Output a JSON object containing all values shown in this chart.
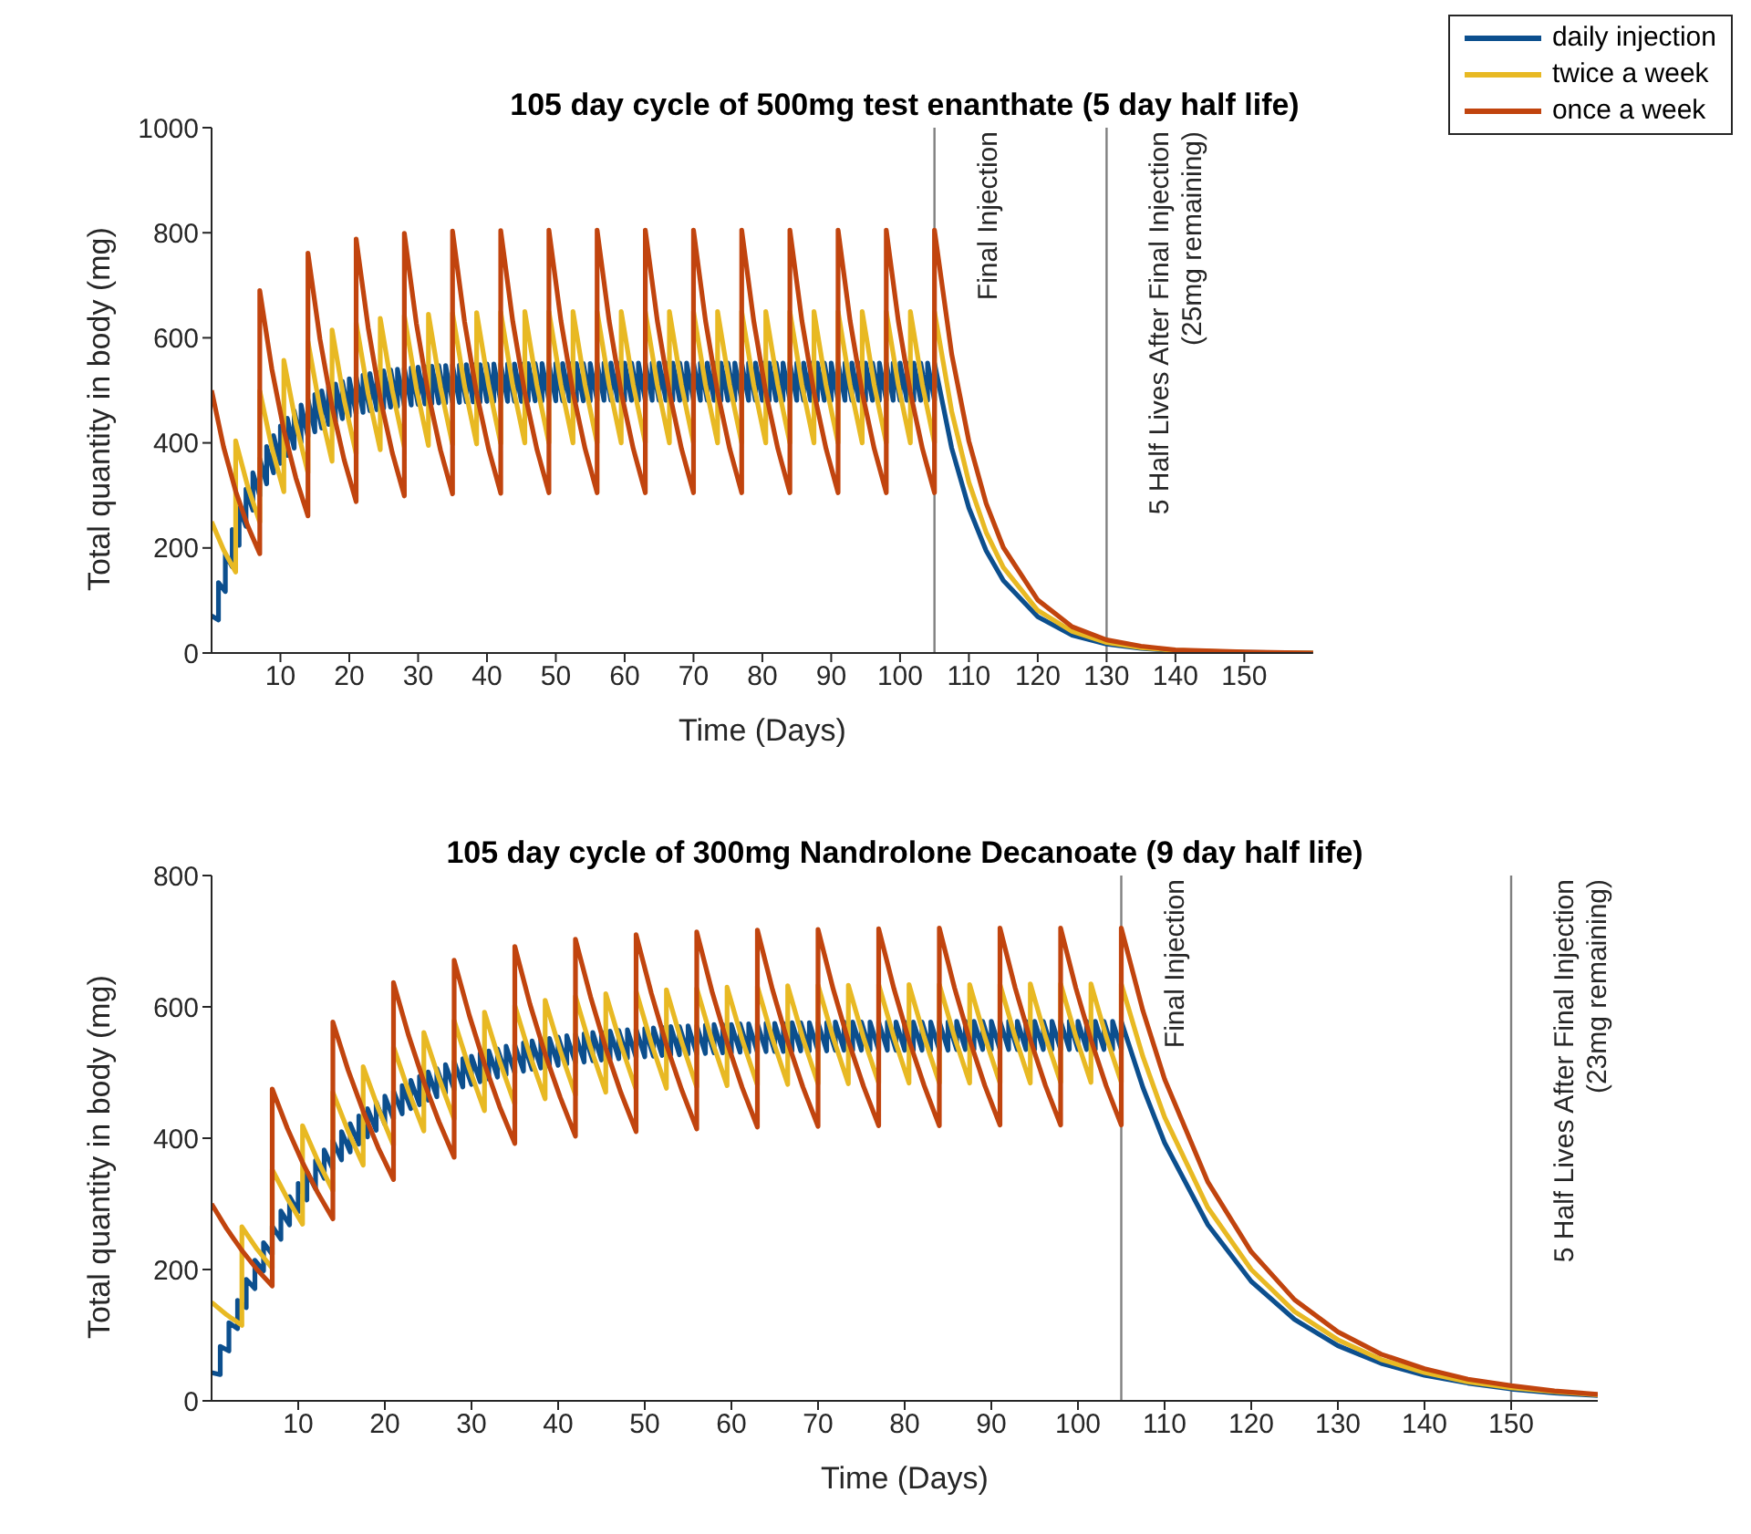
{
  "chart_data": [
    {
      "type": "line",
      "title": "105 day cycle of 500mg test enanthate (5 day half life)",
      "xlabel": "Time (Days)",
      "ylabel": "Total quantity in body (mg)",
      "xlim": [
        0,
        160
      ],
      "xticks": [
        10,
        20,
        30,
        40,
        50,
        60,
        70,
        80,
        90,
        100,
        110,
        120,
        130,
        140,
        150
      ],
      "ylim": [
        0,
        1000
      ],
      "yticks": [
        0,
        200,
        400,
        600,
        800,
        1000
      ],
      "legend": "top right",
      "line_style": "solid",
      "marker": "none",
      "ref_lines": [
        {
          "axis": "x",
          "value": 105,
          "label": "Final Injection",
          "color": "#808080"
        },
        {
          "axis": "x",
          "value": 130,
          "label": "5 Half Lives After Final Injection\n(25mg remaining)",
          "color": "#808080"
        }
      ],
      "series": [
        {
          "name": "daily injection",
          "color": "#0c4f8e",
          "x": [
            0,
            1,
            1,
            2,
            2,
            3,
            3,
            4,
            4,
            5,
            5,
            6,
            6,
            7,
            7,
            8,
            8,
            9,
            9,
            10,
            10,
            11,
            11,
            12,
            12,
            13,
            13,
            14,
            14,
            15,
            15,
            16,
            16,
            17,
            17,
            18,
            18,
            19,
            19,
            20,
            20,
            21,
            21,
            22,
            22,
            23,
            23,
            24,
            24,
            25,
            25,
            26,
            26,
            27,
            27,
            28,
            28,
            29,
            29,
            30,
            30,
            31,
            31,
            32,
            32,
            33,
            33,
            34,
            34,
            35,
            35,
            36,
            36,
            37,
            37,
            38,
            38,
            39,
            39,
            40,
            40,
            41,
            41,
            42,
            42,
            43,
            43,
            44,
            44,
            45,
            45,
            46,
            46,
            47,
            47,
            48,
            48,
            49,
            49,
            50,
            50,
            51,
            51,
            52,
            52,
            53,
            53,
            54,
            54,
            55,
            55,
            56,
            56,
            57,
            57,
            58,
            58,
            59,
            59,
            60,
            60,
            61,
            61,
            62,
            62,
            63,
            63,
            64,
            64,
            65,
            65,
            66,
            66,
            67,
            67,
            68,
            68,
            69,
            69,
            70,
            70,
            71,
            71,
            72,
            72,
            73,
            73,
            74,
            74,
            75,
            75,
            76,
            76,
            77,
            77,
            78,
            78,
            79,
            79,
            80,
            80,
            81,
            81,
            82,
            82,
            83,
            83,
            84,
            84,
            85,
            85,
            86,
            86,
            87,
            87,
            88,
            88,
            89,
            89,
            90,
            90,
            91,
            91,
            92,
            92,
            93,
            93,
            94,
            94,
            95,
            95,
            96,
            96,
            97,
            97,
            98,
            98,
            99,
            99,
            100,
            100,
            101,
            101,
            102,
            102,
            103,
            103,
            104,
            104,
            105,
            105,
            107.5,
            110,
            112.5,
            115,
            120,
            125,
            130,
            135,
            140,
            150,
            160
          ],
          "values": [
            71,
            63,
            134,
            117,
            188,
            164,
            235,
            205,
            276,
            241,
            312,
            272,
            343,
            299,
            370,
            322,
            393,
            343,
            414,
            361,
            432,
            376,
            447,
            390,
            461,
            401,
            472,
            412,
            483,
            421,
            492,
            428,
            499,
            435,
            506,
            441,
            512,
            446,
            517,
            451,
            522,
            455,
            526,
            458,
            529,
            461,
            532,
            463,
            534,
            466,
            537,
            468,
            539,
            469,
            540,
            471,
            542,
            472,
            543,
            473,
            544,
            474,
            545,
            475,
            546,
            476,
            547,
            476,
            547,
            477,
            548,
            477,
            548,
            478,
            549,
            478,
            549,
            478,
            549,
            479,
            550,
            479,
            550,
            479,
            550,
            479,
            550,
            479,
            550,
            479,
            550,
            480,
            551,
            480,
            551,
            480,
            551,
            480,
            551,
            480,
            551,
            480,
            551,
            480,
            551,
            480,
            551,
            480,
            551,
            480,
            551,
            481,
            552,
            481,
            552,
            481,
            552,
            481,
            552,
            481,
            552,
            481,
            552,
            481,
            552,
            481,
            552,
            481,
            552,
            481,
            552,
            481,
            552,
            481,
            552,
            481,
            552,
            481,
            552,
            481,
            552,
            481,
            552,
            481,
            552,
            481,
            552,
            481,
            552,
            481,
            552,
            481,
            552,
            481,
            552,
            481,
            552,
            481,
            552,
            481,
            552,
            481,
            552,
            481,
            552,
            481,
            552,
            481,
            552,
            481,
            552,
            481,
            552,
            481,
            552,
            481,
            552,
            481,
            552,
            481,
            552,
            481,
            552,
            481,
            552,
            481,
            552,
            481,
            552,
            481,
            552,
            481,
            552,
            481,
            552,
            481,
            552,
            481,
            552,
            481,
            552,
            481,
            552,
            481,
            552,
            481,
            552,
            481,
            552,
            481,
            552,
            390,
            276,
            195,
            138,
            69,
            34,
            17,
            9,
            4,
            1,
            0
          ]
        },
        {
          "name": "twice a week",
          "color": "#e8b923",
          "x": [
            0,
            1.75,
            3.5,
            3.5,
            5.25,
            7,
            7,
            8.75,
            10.5,
            10.5,
            12.25,
            14,
            14,
            15.75,
            17.5,
            17.5,
            19.25,
            21,
            21,
            22.75,
            24.5,
            24.5,
            26.25,
            28,
            28,
            29.75,
            31.5,
            31.5,
            33.25,
            35,
            35,
            36.75,
            38.5,
            38.5,
            40.25,
            42,
            42,
            43.75,
            45.5,
            45.5,
            47.25,
            49,
            49,
            50.75,
            52.5,
            52.5,
            54.25,
            56,
            56,
            57.75,
            59.5,
            59.5,
            61.25,
            63,
            63,
            64.75,
            66.5,
            66.5,
            68.25,
            70,
            70,
            71.75,
            73.5,
            73.5,
            75.25,
            77,
            77,
            78.75,
            80.5,
            80.5,
            82.25,
            84,
            84,
            85.75,
            87.5,
            87.5,
            89.25,
            91,
            91,
            92.75,
            94.5,
            94.5,
            96.25,
            98,
            98,
            99.75,
            101.5,
            101.5,
            103.25,
            105,
            105,
            107.5,
            110,
            112.5,
            115,
            120,
            125,
            130,
            135,
            140,
            150,
            160
          ],
          "values": [
            250,
            196,
            154,
            404,
            317,
            249,
            499,
            391,
            307,
            557,
            437,
            343,
            593,
            465,
            365,
            615,
            482,
            379,
            629,
            493,
            387,
            637,
            500,
            392,
            642,
            504,
            395,
            645,
            506,
            397,
            647,
            508,
            398,
            648,
            509,
            399,
            649,
            509,
            400,
            650,
            510,
            400,
            650,
            510,
            400,
            650,
            510,
            400,
            650,
            510,
            400,
            650,
            510,
            400,
            650,
            510,
            400,
            650,
            510,
            400,
            650,
            510,
            400,
            650,
            510,
            400,
            650,
            510,
            400,
            650,
            510,
            400,
            650,
            510,
            400,
            650,
            510,
            400,
            650,
            510,
            400,
            650,
            510,
            400,
            650,
            510,
            400,
            650,
            510,
            400,
            650,
            460,
            325,
            230,
            163,
            81,
            41,
            20,
            10,
            5,
            1,
            0
          ]
        },
        {
          "name": "once a week",
          "color": "#c1440e",
          "x": [
            0,
            1.75,
            3.5,
            5.25,
            7,
            7,
            8.75,
            10.5,
            12.25,
            14,
            14,
            15.75,
            17.5,
            19.25,
            21,
            21,
            22.75,
            24.5,
            26.25,
            28,
            28,
            29.75,
            31.5,
            33.25,
            35,
            35,
            36.75,
            38.5,
            40.25,
            42,
            42,
            43.75,
            45.5,
            47.25,
            49,
            49,
            50.75,
            52.5,
            54.25,
            56,
            56,
            57.75,
            59.5,
            61.25,
            63,
            63,
            64.75,
            66.5,
            68.25,
            70,
            70,
            71.75,
            73.5,
            75.25,
            77,
            77,
            78.75,
            80.5,
            82.25,
            84,
            84,
            85.75,
            87.5,
            89.25,
            91,
            91,
            92.75,
            94.5,
            96.25,
            98,
            98,
            99.75,
            101.5,
            103.25,
            105,
            105,
            107.5,
            110,
            112.5,
            115,
            120,
            125,
            130,
            135,
            140,
            150,
            160
          ],
          "values": [
            500,
            392,
            308,
            242,
            189,
            690,
            541,
            424,
            333,
            261,
            761,
            597,
            469,
            368,
            288,
            788,
            619,
            485,
            381,
            299,
            799,
            627,
            492,
            386,
            303,
            803,
            630,
            494,
            388,
            304,
            804,
            631,
            495,
            388,
            305,
            805,
            632,
            496,
            389,
            305,
            805,
            632,
            496,
            389,
            305,
            805,
            632,
            496,
            389,
            305,
            805,
            632,
            496,
            389,
            305,
            805,
            632,
            496,
            389,
            305,
            805,
            632,
            496,
            389,
            305,
            805,
            632,
            496,
            389,
            305,
            805,
            632,
            496,
            389,
            305,
            805,
            569,
            403,
            285,
            201,
            101,
            50,
            25,
            13,
            6,
            2,
            0
          ]
        }
      ]
    },
    {
      "type": "line",
      "title": "105 day cycle of 300mg Nandrolone Decanoate (9 day half life)",
      "xlabel": "Time (Days)",
      "ylabel": "Total quantity in body (mg)",
      "xlim": [
        0,
        160
      ],
      "xticks": [
        10,
        20,
        30,
        40,
        50,
        60,
        70,
        80,
        90,
        100,
        110,
        120,
        130,
        140,
        150
      ],
      "ylim": [
        0,
        800
      ],
      "yticks": [
        0,
        200,
        400,
        600,
        800
      ],
      "line_style": "solid",
      "marker": "none",
      "ref_lines": [
        {
          "axis": "x",
          "value": 105,
          "label": "Final Injection",
          "color": "#808080"
        },
        {
          "axis": "x",
          "value": 150,
          "label": "5 Half Lives After Final Injection\n(23mg remaining)",
          "color": "#808080"
        }
      ],
      "series": [
        {
          "color": "#0c4f8e",
          "x": [
            0,
            1,
            1,
            2,
            2,
            3,
            3,
            4,
            4,
            5,
            5,
            6,
            6,
            7,
            7,
            8,
            8,
            9,
            9,
            10,
            10,
            11,
            11,
            12,
            12,
            13,
            13,
            14,
            14,
            15,
            15,
            16,
            16,
            17,
            17,
            18,
            18,
            19,
            19,
            20,
            20,
            21,
            21,
            22,
            22,
            23,
            23,
            24,
            24,
            25,
            25,
            26,
            26,
            27,
            27,
            28,
            28,
            29,
            29,
            30,
            30,
            31,
            31,
            32,
            32,
            33,
            33,
            34,
            34,
            35,
            35,
            36,
            36,
            37,
            37,
            38,
            38,
            39,
            39,
            40,
            40,
            41,
            41,
            42,
            42,
            43,
            43,
            44,
            44,
            45,
            45,
            46,
            46,
            47,
            47,
            48,
            48,
            49,
            49,
            50,
            50,
            51,
            51,
            52,
            52,
            53,
            53,
            54,
            54,
            55,
            55,
            56,
            56,
            57,
            57,
            58,
            58,
            59,
            59,
            60,
            60,
            61,
            61,
            62,
            62,
            63,
            63,
            64,
            64,
            65,
            65,
            66,
            66,
            67,
            67,
            68,
            68,
            69,
            69,
            70,
            70,
            71,
            71,
            72,
            72,
            73,
            73,
            74,
            74,
            75,
            75,
            76,
            76,
            77,
            77,
            78,
            78,
            79,
            79,
            80,
            80,
            81,
            81,
            82,
            82,
            83,
            83,
            84,
            84,
            85,
            85,
            86,
            86,
            87,
            87,
            88,
            88,
            89,
            89,
            90,
            90,
            91,
            91,
            92,
            92,
            93,
            93,
            94,
            94,
            95,
            95,
            96,
            96,
            97,
            97,
            98,
            98,
            99,
            99,
            100,
            100,
            101,
            101,
            102,
            102,
            103,
            103,
            104,
            104,
            105,
            105,
            107.5,
            110,
            115,
            120,
            125,
            130,
            135,
            140,
            145,
            150,
            155,
            160
          ],
          "values": [
            43,
            40,
            83,
            76,
            119,
            110,
            153,
            142,
            185,
            171,
            214,
            198,
            241,
            223,
            266,
            246,
            289,
            268,
            311,
            288,
            331,
            306,
            349,
            323,
            366,
            339,
            382,
            353,
            396,
            367,
            410,
            379,
            422,
            391,
            434,
            402,
            445,
            412,
            455,
            421,
            464,
            429,
            472,
            437,
            480,
            445,
            488,
            451,
            494,
            458,
            501,
            463,
            506,
            469,
            512,
            474,
            517,
            478,
            521,
            482,
            525,
            486,
            529,
            490,
            533,
            493,
            536,
            497,
            540,
            499,
            542,
            502,
            545,
            505,
            548,
            507,
            550,
            509,
            552,
            511,
            554,
            513,
            556,
            515,
            558,
            516,
            559,
            518,
            561,
            519,
            562,
            520,
            563,
            521,
            564,
            522,
            565,
            523,
            566,
            524,
            567,
            525,
            568,
            526,
            569,
            527,
            570,
            527,
            570,
            528,
            571,
            528,
            571,
            529,
            572,
            530,
            573,
            530,
            573,
            530,
            573,
            531,
            574,
            531,
            574,
            531,
            574,
            532,
            575,
            532,
            575,
            532,
            575,
            533,
            576,
            533,
            576,
            533,
            576,
            533,
            576,
            533,
            576,
            534,
            577,
            534,
            577,
            534,
            577,
            534,
            577,
            534,
            577,
            534,
            577,
            534,
            577,
            534,
            577,
            534,
            577,
            534,
            577,
            534,
            577,
            534,
            577,
            534,
            577,
            534,
            577,
            535,
            578,
            535,
            578,
            535,
            578,
            535,
            578,
            535,
            578,
            535,
            578,
            535,
            578,
            535,
            578,
            535,
            578,
            535,
            578,
            535,
            578,
            535,
            578,
            535,
            578,
            535,
            578,
            535,
            578,
            535,
            578,
            535,
            578,
            535,
            578,
            535,
            578,
            535,
            578,
            477,
            393,
            268,
            182,
            124,
            84,
            57,
            39,
            27,
            18,
            12,
            8
          ]
        },
        {
          "color": "#e8b923",
          "x": [
            0,
            1.75,
            3.5,
            3.5,
            5.25,
            7,
            7,
            8.75,
            10.5,
            10.5,
            12.25,
            14,
            14,
            15.75,
            17.5,
            17.5,
            19.25,
            21,
            21,
            22.75,
            24.5,
            24.5,
            26.25,
            28,
            28,
            29.75,
            31.5,
            31.5,
            33.25,
            35,
            35,
            36.75,
            38.5,
            38.5,
            40.25,
            42,
            42,
            43.75,
            45.5,
            45.5,
            47.25,
            49,
            49,
            50.75,
            52.5,
            52.5,
            54.25,
            56,
            56,
            57.75,
            59.5,
            59.5,
            61.25,
            63,
            63,
            64.75,
            66.5,
            66.5,
            68.25,
            70,
            70,
            71.75,
            73.5,
            73.5,
            75.25,
            77,
            77,
            78.75,
            80.5,
            80.5,
            82.25,
            84,
            84,
            85.75,
            87.5,
            87.5,
            89.25,
            91,
            91,
            92.75,
            94.5,
            94.5,
            96.25,
            98,
            98,
            99.75,
            101.5,
            101.5,
            103.25,
            105,
            105,
            107.5,
            110,
            115,
            120,
            125,
            130,
            135,
            140,
            145,
            150,
            155,
            160
          ],
          "values": [
            150,
            131,
            115,
            265,
            231,
            202,
            352,
            308,
            269,
            419,
            366,
            320,
            470,
            411,
            359,
            509,
            445,
            389,
            539,
            471,
            411,
            561,
            491,
            429,
            579,
            506,
            442,
            592,
            517,
            452,
            602,
            526,
            460,
            610,
            533,
            466,
            616,
            538,
            470,
            620,
            542,
            474,
            624,
            545,
            476,
            626,
            547,
            478,
            628,
            549,
            480,
            630,
            550,
            481,
            631,
            551,
            482,
            632,
            552,
            483,
            633,
            553,
            483,
            633,
            553,
            484,
            634,
            554,
            484,
            634,
            554,
            484,
            634,
            554,
            484,
            634,
            554,
            484,
            634,
            554,
            484,
            635,
            555,
            485,
            635,
            555,
            485,
            635,
            555,
            485,
            635,
            524,
            432,
            294,
            200,
            136,
            93,
            63,
            43,
            29,
            20,
            14,
            9
          ]
        },
        {
          "color": "#c1440e",
          "x": [
            0,
            1.75,
            3.5,
            5.25,
            7,
            7,
            8.75,
            10.5,
            12.25,
            14,
            14,
            15.75,
            17.5,
            19.25,
            21,
            21,
            22.75,
            24.5,
            26.25,
            28,
            28,
            29.75,
            31.5,
            33.25,
            35,
            35,
            36.75,
            38.5,
            40.25,
            42,
            42,
            43.75,
            45.5,
            47.25,
            49,
            49,
            50.75,
            52.5,
            54.25,
            56,
            56,
            57.75,
            59.5,
            61.25,
            63,
            63,
            64.75,
            66.5,
            68.25,
            70,
            70,
            71.75,
            73.5,
            75.25,
            77,
            77,
            78.75,
            80.5,
            82.25,
            84,
            84,
            85.75,
            87.5,
            89.25,
            91,
            91,
            92.75,
            94.5,
            96.25,
            98,
            98,
            99.75,
            101.5,
            103.25,
            105,
            105,
            107.5,
            110,
            115,
            120,
            125,
            130,
            135,
            140,
            145,
            150,
            155,
            160
          ],
          "values": [
            300,
            262,
            229,
            200,
            175,
            475,
            415,
            363,
            317,
            277,
            577,
            504,
            441,
            385,
            337,
            637,
            556,
            486,
            425,
            371,
            671,
            587,
            513,
            448,
            392,
            692,
            604,
            528,
            462,
            403,
            703,
            615,
            537,
            469,
            410,
            710,
            621,
            542,
            474,
            414,
            714,
            624,
            546,
            477,
            417,
            717,
            626,
            547,
            478,
            418,
            718,
            627,
            548,
            479,
            419,
            719,
            628,
            549,
            480,
            419,
            720,
            629,
            550,
            480,
            420,
            720,
            629,
            550,
            480,
            420,
            720,
            629,
            550,
            480,
            420,
            720,
            594,
            490,
            333,
            227,
            154,
            105,
            71,
            49,
            33,
            23,
            15,
            10
          ]
        }
      ]
    }
  ]
}
